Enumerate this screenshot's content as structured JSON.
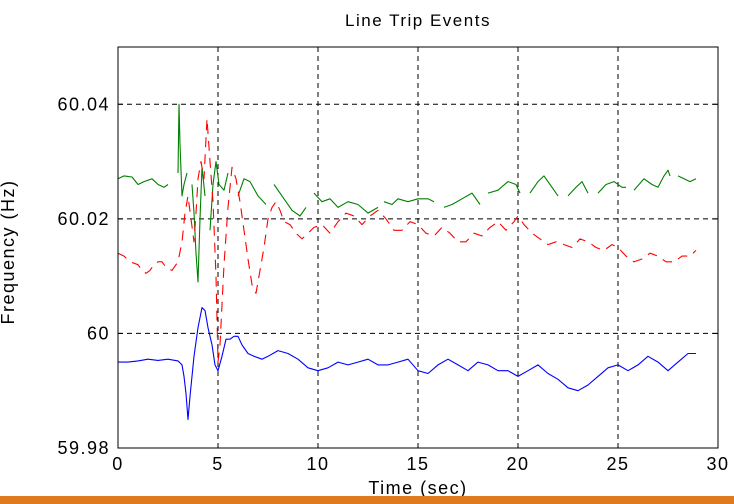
{
  "chart_data": {
    "type": "line",
    "title": "Line Trip Events",
    "xlabel": "Time (sec)",
    "ylabel": "Frequency (Hz)",
    "xlim": [
      0,
      30
    ],
    "ylim": [
      59.98,
      60.05
    ],
    "xticks": [
      0,
      5,
      10,
      15,
      20,
      25,
      30
    ],
    "yticks": [
      59.98,
      60,
      60.02,
      60.04
    ],
    "ytick_labels": [
      "59.98",
      "60",
      "60.02",
      "60.04"
    ],
    "grid": true,
    "series": [
      {
        "color": "#008000",
        "style": "solid",
        "points": [
          [
            0,
            60.027
          ],
          [
            0.3,
            60.0275
          ],
          [
            0.7,
            60.0273
          ],
          [
            1.0,
            60.026
          ],
          [
            1.3,
            60.0265
          ],
          [
            1.7,
            60.027
          ],
          [
            2.0,
            60.026
          ],
          [
            2.3,
            60.0255
          ],
          [
            2.5,
            60.026
          ],
          null,
          [
            3.0,
            60.028
          ],
          [
            3.05,
            60.04
          ],
          [
            3.1,
            60.033
          ],
          [
            3.2,
            60.024
          ],
          [
            3.3,
            60.026
          ],
          [
            3.45,
            60.028
          ],
          null,
          [
            3.7,
            60.026
          ],
          [
            3.8,
            60.021
          ],
          [
            3.9,
            60.014
          ],
          [
            4.0,
            60.009
          ],
          [
            4.1,
            60.02
          ],
          [
            4.2,
            60.029
          ],
          [
            4.35,
            60.024
          ],
          null,
          [
            4.6,
            60.018
          ],
          [
            4.75,
            60.026
          ],
          [
            4.9,
            60.03
          ],
          [
            5.05,
            60.026
          ],
          [
            5.3,
            60.025
          ],
          [
            5.5,
            60.028
          ],
          null,
          [
            6.0,
            60.024
          ],
          [
            6.3,
            60.027
          ],
          [
            6.6,
            60.0265
          ],
          [
            7.0,
            60.024
          ],
          [
            7.4,
            60.0225
          ],
          null,
          [
            7.8,
            60.026
          ],
          [
            8.2,
            60.024
          ],
          [
            8.7,
            60.0215
          ],
          [
            9.1,
            60.0205
          ],
          [
            9.4,
            60.022
          ],
          null,
          [
            9.8,
            60.0245
          ],
          [
            10.2,
            60.023
          ],
          [
            10.6,
            60.0235
          ],
          [
            11.0,
            60.022
          ],
          [
            11.5,
            60.023
          ],
          [
            12.0,
            60.0225
          ],
          [
            12.5,
            60.021
          ],
          [
            13.0,
            60.022
          ],
          null,
          [
            13.3,
            60.023
          ],
          [
            13.7,
            60.0225
          ],
          [
            14.0,
            60.0235
          ],
          [
            14.5,
            60.023
          ],
          [
            15.0,
            60.0235
          ],
          [
            15.5,
            60.0235
          ],
          [
            15.8,
            60.023
          ],
          null,
          [
            16.3,
            60.022
          ],
          [
            16.7,
            60.0225
          ],
          [
            17.2,
            60.0235
          ],
          [
            17.7,
            60.0245
          ],
          [
            18.1,
            60.0225
          ],
          null,
          [
            18.5,
            60.0245
          ],
          [
            19.0,
            60.025
          ],
          [
            19.5,
            60.0265
          ],
          [
            19.9,
            60.026
          ],
          [
            20.1,
            60.0245
          ],
          null,
          [
            20.6,
            60.0245
          ],
          [
            21.0,
            60.0265
          ],
          [
            21.3,
            60.0275
          ],
          [
            21.7,
            60.0255
          ],
          [
            22.0,
            60.024
          ],
          null,
          [
            22.5,
            60.024
          ],
          [
            22.9,
            60.0255
          ],
          [
            23.2,
            60.0265
          ],
          [
            23.5,
            60.0245
          ],
          null,
          [
            24.0,
            60.0245
          ],
          [
            24.4,
            60.026
          ],
          [
            24.8,
            60.0265
          ],
          [
            25.2,
            60.0255
          ],
          [
            25.4,
            60.0255
          ],
          null,
          [
            25.8,
            60.025
          ],
          [
            26.3,
            60.027
          ],
          [
            26.7,
            60.026
          ],
          [
            27.0,
            60.0255
          ],
          [
            27.3,
            60.0275
          ],
          [
            27.5,
            60.0285
          ],
          [
            27.6,
            60.0275
          ],
          null,
          [
            28.0,
            60.0275
          ],
          [
            28.3,
            60.027
          ],
          [
            28.6,
            60.0265
          ],
          [
            28.9,
            60.027
          ]
        ]
      },
      {
        "color": "#ff0000",
        "style": "dashed",
        "points": [
          [
            0,
            60.014
          ],
          [
            0.3,
            60.0135
          ],
          [
            0.6,
            60.0125
          ],
          [
            1.0,
            60.012
          ],
          [
            1.2,
            60.011
          ],
          [
            1.4,
            60.0105
          ],
          [
            1.6,
            60.011
          ],
          [
            1.8,
            60.012
          ],
          [
            2.0,
            60.0125
          ],
          [
            2.2,
            60.0125
          ],
          [
            2.4,
            60.0115
          ],
          [
            2.7,
            60.011
          ],
          [
            3.0,
            60.0125
          ],
          [
            3.2,
            60.016
          ],
          [
            3.35,
            60.021
          ],
          [
            3.5,
            60.024
          ],
          [
            3.65,
            60.02
          ],
          [
            3.8,
            60.016
          ],
          [
            3.9,
            60.021
          ],
          [
            4.0,
            60.027
          ],
          [
            4.15,
            60.03
          ],
          [
            4.3,
            60.027
          ],
          [
            4.45,
            60.0375
          ],
          [
            4.6,
            60.03
          ],
          [
            4.75,
            60.023
          ],
          [
            4.9,
            60.01
          ],
          [
            5.0,
            59.995
          ],
          [
            5.1,
            59.998
          ],
          [
            5.3,
            60.012
          ],
          [
            5.5,
            60.022
          ],
          [
            5.7,
            60.029
          ],
          [
            5.9,
            60.027
          ],
          [
            6.1,
            60.023
          ],
          [
            6.3,
            60.018
          ],
          [
            6.5,
            60.013
          ],
          [
            6.7,
            60.0085
          ],
          [
            6.9,
            60.007
          ],
          [
            7.1,
            60.011
          ],
          [
            7.3,
            60.015
          ],
          [
            7.5,
            60.02
          ],
          [
            7.7,
            60.022
          ],
          [
            7.9,
            60.023
          ],
          [
            8.1,
            60.0215
          ],
          [
            8.3,
            60.0195
          ],
          [
            8.6,
            60.019
          ],
          [
            8.9,
            60.0175
          ],
          [
            9.2,
            60.0165
          ],
          [
            9.5,
            60.0175
          ],
          [
            9.8,
            60.0185
          ],
          [
            10.2,
            60.019
          ],
          [
            10.6,
            60.0175
          ],
          [
            11.0,
            60.0195
          ],
          [
            11.4,
            60.021
          ],
          [
            11.8,
            60.0205
          ],
          [
            12.2,
            60.019
          ],
          [
            12.6,
            60.0205
          ],
          [
            13.0,
            60.0215
          ],
          [
            13.4,
            60.02
          ],
          [
            13.8,
            60.018
          ],
          [
            14.2,
            60.018
          ],
          [
            14.6,
            60.0195
          ],
          [
            15.0,
            60.019
          ],
          [
            15.4,
            60.0175
          ],
          [
            15.8,
            60.017
          ],
          [
            16.2,
            60.0185
          ],
          [
            16.6,
            60.0175
          ],
          [
            17.0,
            60.016
          ],
          [
            17.4,
            60.016
          ],
          [
            17.8,
            60.0175
          ],
          [
            18.2,
            60.017
          ],
          [
            18.6,
            60.0185
          ],
          [
            19.0,
            60.0195
          ],
          [
            19.4,
            60.018
          ],
          [
            19.8,
            60.0195
          ],
          [
            20.0,
            60.0205
          ],
          [
            20.3,
            60.019
          ],
          [
            20.7,
            60.0175
          ],
          [
            21.1,
            60.0165
          ],
          [
            21.5,
            60.0155
          ],
          [
            21.9,
            60.016
          ],
          [
            22.3,
            60.0155
          ],
          [
            22.7,
            60.015
          ],
          [
            23.1,
            60.0165
          ],
          [
            23.5,
            60.016
          ],
          [
            23.9,
            60.015
          ],
          [
            24.3,
            60.0145
          ],
          [
            24.7,
            60.0155
          ],
          [
            25.0,
            60.015
          ],
          [
            25.4,
            60.0135
          ],
          [
            25.8,
            60.0125
          ],
          [
            26.2,
            60.013
          ],
          [
            26.6,
            60.014
          ],
          [
            27.0,
            60.0135
          ],
          [
            27.4,
            60.0125
          ],
          [
            27.8,
            60.0125
          ],
          [
            28.2,
            60.0135
          ],
          [
            28.6,
            60.0135
          ],
          [
            28.9,
            60.0145
          ]
        ]
      },
      {
        "color": "#0000ff",
        "style": "solid",
        "points": [
          [
            0,
            59.995
          ],
          [
            0.5,
            59.995
          ],
          [
            1.0,
            59.9952
          ],
          [
            1.5,
            59.9955
          ],
          [
            2.0,
            59.9953
          ],
          [
            2.5,
            59.9955
          ],
          [
            3.0,
            59.9952
          ],
          [
            3.2,
            59.9945
          ],
          [
            3.3,
            59.9925
          ],
          [
            3.4,
            59.9895
          ],
          [
            3.5,
            59.985
          ],
          [
            3.6,
            59.989
          ],
          [
            3.8,
            59.996
          ],
          [
            4.0,
            60.001
          ],
          [
            4.2,
            60.0045
          ],
          [
            4.35,
            60.004
          ],
          [
            4.5,
            60.001
          ],
          [
            4.7,
            59.998
          ],
          [
            4.85,
            59.9945
          ],
          [
            5.0,
            59.9935
          ],
          [
            5.2,
            59.996
          ],
          [
            5.4,
            59.999
          ],
          [
            5.6,
            59.999
          ],
          [
            5.8,
            59.9995
          ],
          [
            6.0,
            59.9995
          ],
          [
            6.2,
            59.998
          ],
          [
            6.5,
            59.9965
          ],
          [
            6.8,
            59.996
          ],
          [
            7.2,
            59.9955
          ],
          [
            7.5,
            59.996
          ],
          [
            8.0,
            59.997
          ],
          [
            8.5,
            59.9965
          ],
          [
            9.0,
            59.9955
          ],
          [
            9.5,
            59.994
          ],
          [
            10.0,
            59.9935
          ],
          [
            10.5,
            59.994
          ],
          [
            11.0,
            59.995
          ],
          [
            11.5,
            59.9945
          ],
          [
            12.0,
            59.995
          ],
          [
            12.5,
            59.9955
          ],
          [
            13.0,
            59.9945
          ],
          [
            13.5,
            59.9945
          ],
          [
            14.0,
            59.995
          ],
          [
            14.5,
            59.9955
          ],
          [
            15.0,
            59.9935
          ],
          [
            15.5,
            59.993
          ],
          [
            16.0,
            59.9945
          ],
          [
            16.5,
            59.9955
          ],
          [
            17.0,
            59.9945
          ],
          [
            17.5,
            59.9935
          ],
          [
            18.0,
            59.995
          ],
          [
            18.5,
            59.9945
          ],
          [
            19.0,
            59.9935
          ],
          [
            19.5,
            59.9935
          ],
          [
            20.0,
            59.9925
          ],
          [
            20.5,
            59.9935
          ],
          [
            21.0,
            59.9945
          ],
          [
            21.5,
            59.993
          ],
          [
            22.0,
            59.992
          ],
          [
            22.5,
            59.9905
          ],
          [
            23.0,
            59.99
          ],
          [
            23.5,
            59.991
          ],
          [
            24.0,
            59.9925
          ],
          [
            24.5,
            59.994
          ],
          [
            25.0,
            59.9945
          ],
          [
            25.5,
            59.9935
          ],
          [
            26.0,
            59.9945
          ],
          [
            26.5,
            59.996
          ],
          [
            27.0,
            59.995
          ],
          [
            27.5,
            59.9935
          ],
          [
            28.0,
            59.995
          ],
          [
            28.5,
            59.9965
          ],
          [
            28.9,
            59.9965
          ]
        ]
      }
    ]
  },
  "footer_color": "#e07a1f"
}
